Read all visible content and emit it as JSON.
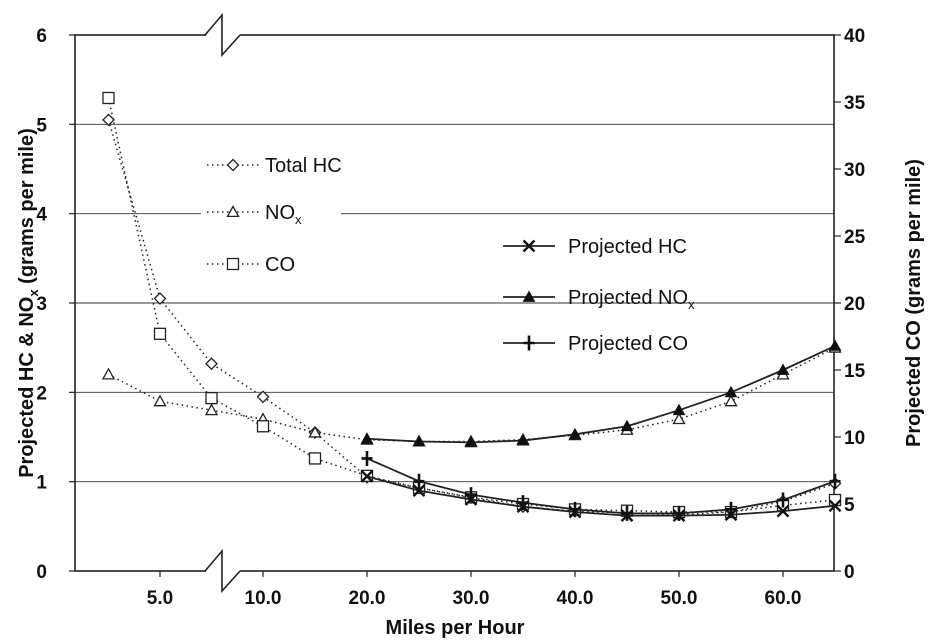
{
  "chart_data": {
    "type": "line",
    "xlabel": "Miles per Hour",
    "ylabel_left_prefix": "Projected HC & NO",
    "ylabel_left_sub": "x",
    "ylabel_left_suffix": " (grams per mile)",
    "ylabel_right": "Projected CO (grams per mile)",
    "x_ticks": [
      5,
      10,
      20,
      30,
      40,
      50,
      60
    ],
    "x_tick_labels": [
      "5.0",
      "10.0",
      "20.0",
      "30.0",
      "40.0",
      "50.0",
      "60.0"
    ],
    "y_left_ticks": [
      0,
      1,
      2,
      3,
      4,
      5,
      6
    ],
    "y_left_tick_labels": [
      "0",
      "1",
      "2",
      "3",
      "4",
      "5",
      "6"
    ],
    "y_right_ticks": [
      0,
      5,
      10,
      15,
      20,
      25,
      30,
      35,
      40
    ],
    "y_right_tick_labels": [
      "0",
      "5",
      "10",
      "15",
      "20",
      "25",
      "30",
      "35",
      "40"
    ],
    "ylim_left": [
      0,
      6
    ],
    "ylim_right": [
      0,
      40
    ],
    "x_axis_break": true,
    "grid": "horizontal",
    "series": [
      {
        "name": "Total HC",
        "marker": "diamond",
        "axis": "left",
        "style": "dotted",
        "x": [
          2.5,
          5,
          7.5,
          10,
          15,
          20,
          25,
          30,
          35,
          40,
          45,
          50,
          55,
          60,
          65
        ],
        "y": [
          5.05,
          3.05,
          2.32,
          1.95,
          1.55,
          1.05,
          0.93,
          0.82,
          0.72,
          0.67,
          0.65,
          0.63,
          0.66,
          0.78,
          0.98
        ]
      },
      {
        "name": "NO",
        "name_sub": "x",
        "marker": "triangle",
        "axis": "left",
        "style": "dotted",
        "x": [
          2.5,
          5,
          7.5,
          10,
          15,
          20,
          25,
          30,
          35,
          40,
          45,
          50,
          55,
          60,
          65
        ],
        "y": [
          2.2,
          1.9,
          1.8,
          1.7,
          1.55,
          1.47,
          1.45,
          1.45,
          1.47,
          1.52,
          1.58,
          1.7,
          1.9,
          2.2,
          2.5
        ]
      },
      {
        "name": "CO",
        "marker": "square",
        "axis": "right",
        "style": "dotted",
        "x": [
          2.5,
          5,
          7.5,
          10,
          15,
          20,
          25,
          30,
          35,
          40,
          45,
          50,
          55,
          60,
          65
        ],
        "y": [
          35.3,
          17.7,
          12.9,
          10.8,
          8.4,
          7.1,
          6.2,
          5.5,
          5.0,
          4.6,
          4.5,
          4.4,
          4.4,
          4.9,
          5.3
        ]
      },
      {
        "name": "Projected HC",
        "marker": "x",
        "axis": "left",
        "style": "solid",
        "x": [
          20,
          25,
          30,
          35,
          40,
          45,
          50,
          55,
          60,
          65
        ],
        "y": [
          1.06,
          0.9,
          0.8,
          0.72,
          0.66,
          0.62,
          0.62,
          0.63,
          0.67,
          0.73
        ]
      },
      {
        "name": "Projected NO",
        "name_sub": "x",
        "marker": "tri-filled",
        "axis": "left",
        "style": "solid",
        "x": [
          20,
          25,
          30,
          35,
          40,
          45,
          50,
          55,
          60,
          65
        ],
        "y": [
          1.48,
          1.45,
          1.44,
          1.46,
          1.53,
          1.62,
          1.8,
          2.0,
          2.25,
          2.52
        ]
      },
      {
        "name": "Projected CO",
        "marker": "plus",
        "axis": "right",
        "style": "solid",
        "x": [
          20,
          25,
          30,
          35,
          40,
          45,
          50,
          55,
          60,
          65
        ],
        "y": [
          8.4,
          6.7,
          5.7,
          5.1,
          4.6,
          4.3,
          4.3,
          4.6,
          5.3,
          6.7
        ]
      }
    ]
  }
}
